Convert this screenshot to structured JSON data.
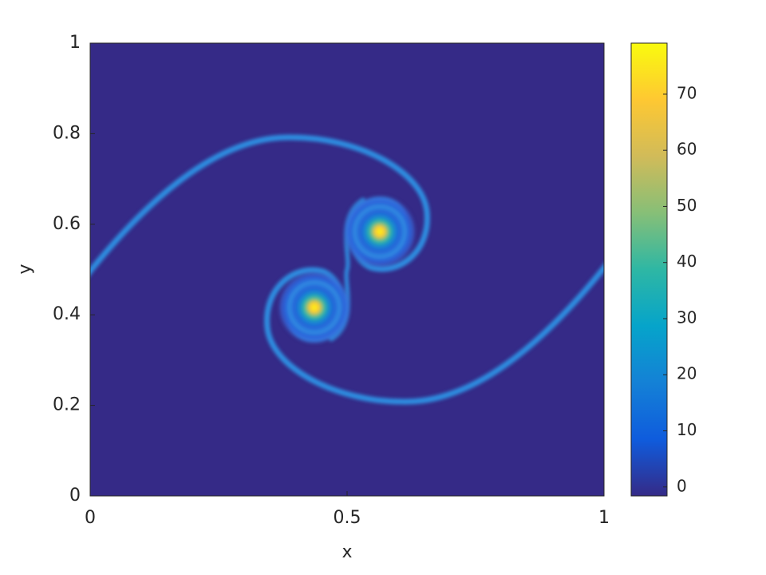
{
  "chart_data": {
    "type": "heatmap",
    "x_label": "x",
    "y_label": "y",
    "xlim": [
      0,
      1
    ],
    "xticks": [
      0,
      0.5,
      1
    ],
    "ylim": [
      0,
      1
    ],
    "yticks": [
      0,
      0.2,
      0.4,
      0.6,
      0.8,
      1
    ],
    "colorbar": {
      "clim": [
        -1.6,
        79.1
      ],
      "ticks": [
        0,
        10,
        20,
        30,
        40,
        50,
        60,
        70
      ]
    },
    "colormap": [
      "#352a87",
      "#0f5cdd",
      "#1481d6",
      "#06a4ca",
      "#2eb7a4",
      "#87bf77",
      "#d1bb59",
      "#fec832",
      "#f9fb0e"
    ]
  }
}
